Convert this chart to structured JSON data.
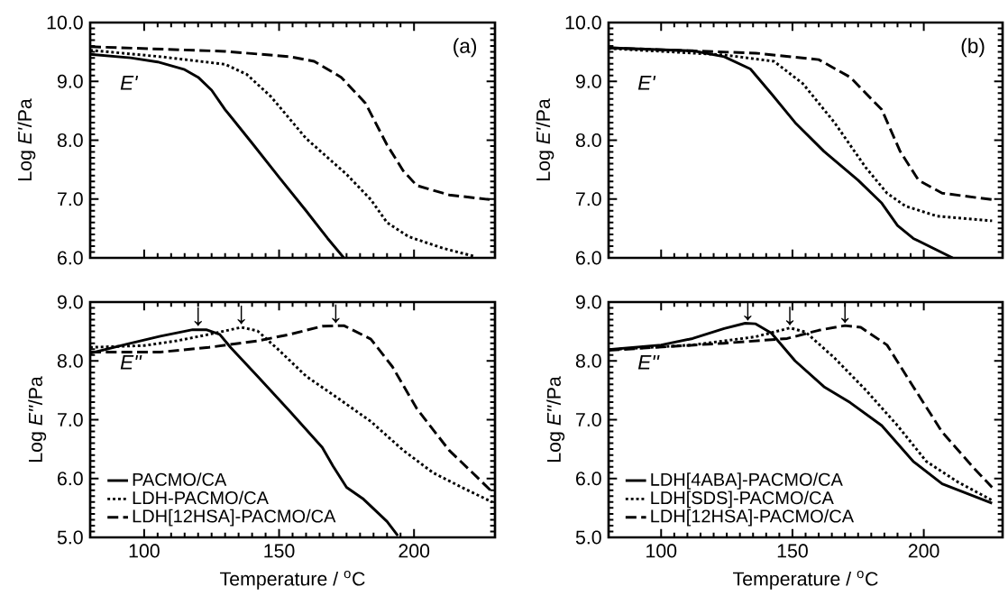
{
  "chart_data": [
    {
      "type": "line",
      "ylabel": "Log *E'*/Pa",
      "xlim": [
        80,
        230
      ],
      "xticks": [
        100,
        150,
        200
      ],
      "ylim": [
        6,
        10
      ],
      "yticks": [
        {
          "value": 6,
          "label": "6.0"
        },
        {
          "value": 7,
          "label": "7.0"
        },
        {
          "value": 8,
          "label": "8.0"
        },
        {
          "value": 9,
          "label": "9.0"
        },
        {
          "value": 10,
          "label": "10.0"
        }
      ],
      "tick_labels": "y",
      "annotations": [
        "(a)",
        "*E'*"
      ],
      "series": [
        {
          "color": "#000000",
          "line_style": "solid",
          "x": [
            80,
            95,
            105,
            115,
            120,
            125,
            130,
            140,
            150,
            160,
            168,
            174
          ],
          "values": [
            9.46,
            9.4,
            9.33,
            9.2,
            9.07,
            8.85,
            8.52,
            7.95,
            7.37,
            6.8,
            6.33,
            6.0
          ]
        },
        {
          "color": "#000000",
          "line_style": "dotted",
          "x": [
            80,
            106,
            130,
            138,
            147,
            160,
            175,
            184,
            190,
            198,
            211,
            222
          ],
          "values": [
            9.53,
            9.42,
            9.29,
            9.12,
            8.74,
            8.03,
            7.42,
            6.99,
            6.6,
            6.36,
            6.16,
            6.03
          ]
        },
        {
          "color": "#000000",
          "line_style": "dashed",
          "x": [
            80,
            130,
            154,
            163,
            173,
            182,
            190,
            196,
            201,
            213,
            228
          ],
          "values": [
            9.59,
            9.51,
            9.42,
            9.34,
            9.07,
            8.63,
            7.92,
            7.48,
            7.23,
            7.07,
            6.99
          ]
        }
      ]
    },
    {
      "type": "line",
      "ylabel": "Log *E'*/Pa",
      "xlim": [
        80,
        230
      ],
      "xticks": [
        100,
        150,
        200
      ],
      "ylim": [
        6,
        10
      ],
      "yticks": [
        {
          "value": 6,
          "label": "6.0"
        },
        {
          "value": 7,
          "label": "7.0"
        },
        {
          "value": 8,
          "label": "8.0"
        },
        {
          "value": 9,
          "label": "9.0"
        },
        {
          "value": 10,
          "label": "10.0"
        }
      ],
      "tick_labels": "y",
      "annotations": [
        "(b)",
        "*E'*"
      ],
      "series": [
        {
          "color": "#000000",
          "line_style": "solid",
          "x": [
            80,
            112,
            124,
            134,
            142,
            151,
            162,
            175,
            184,
            190,
            196,
            211
          ],
          "values": [
            9.57,
            9.52,
            9.42,
            9.21,
            8.79,
            8.3,
            7.81,
            7.32,
            6.93,
            6.55,
            6.33,
            6.0
          ]
        },
        {
          "color": "#000000",
          "line_style": "dotted",
          "x": [
            80,
            124,
            143,
            154,
            166,
            178,
            186,
            193,
            205,
            226
          ],
          "values": [
            9.56,
            9.45,
            9.34,
            8.96,
            8.3,
            7.53,
            7.1,
            6.88,
            6.71,
            6.63
          ]
        },
        {
          "color": "#000000",
          "line_style": "dashed",
          "x": [
            80,
            136,
            160,
            172,
            184,
            191,
            198,
            207,
            226
          ],
          "values": [
            9.57,
            9.48,
            9.37,
            9.07,
            8.52,
            7.81,
            7.32,
            7.1,
            6.99
          ]
        }
      ]
    },
    {
      "type": "line",
      "xlabel": "Temperature / $^{o}$C",
      "ylabel": "Log *E''*/Pa",
      "xlim": [
        80,
        230
      ],
      "xticks": [
        100,
        150,
        200
      ],
      "ylim": [
        5,
        9
      ],
      "yticks": [
        {
          "value": 5,
          "label": "5.0"
        },
        {
          "value": 6,
          "label": "6.0"
        },
        {
          "value": 7,
          "label": "7.0"
        },
        {
          "value": 8,
          "label": "8.0"
        },
        {
          "value": 9,
          "label": "9.0"
        }
      ],
      "legend": "bottom left",
      "annotations": [
        "*E''*",
        {
          "text": "↓",
          "x": 120,
          "y": 8.59
        },
        {
          "text": "↓",
          "x": 136,
          "y": 8.62
        },
        {
          "text": "↓",
          "x": 171,
          "y": 8.64
        }
      ],
      "series": [
        {
          "name": "PACMO/CA",
          "color": "#000000",
          "line_style": "solid",
          "x": [
            80,
            94,
            106,
            118,
            123,
            128,
            132,
            142,
            154,
            166,
            170,
            175,
            181,
            190,
            194
          ],
          "values": [
            8.13,
            8.29,
            8.42,
            8.53,
            8.53,
            8.45,
            8.23,
            7.74,
            7.14,
            6.53,
            6.21,
            5.85,
            5.66,
            5.27,
            5.03
          ]
        },
        {
          "name": "LDH-PACMO/CA",
          "color": "#000000",
          "line_style": "dotted",
          "x": [
            80,
            100,
            112,
            124,
            136,
            142,
            150,
            160,
            172,
            184,
            196,
            207,
            219,
            229
          ],
          "values": [
            8.23,
            8.26,
            8.34,
            8.45,
            8.57,
            8.51,
            8.18,
            7.74,
            7.36,
            6.97,
            6.48,
            6.1,
            5.82,
            5.6
          ]
        },
        {
          "name": "LDH[12HSA]-PACMO/CA",
          "color": "#000000",
          "line_style": "dashed",
          "x": [
            80,
            106,
            124,
            142,
            154,
            166,
            174,
            184,
            192,
            201,
            213,
            223,
            229
          ],
          "values": [
            8.15,
            8.15,
            8.23,
            8.34,
            8.45,
            8.59,
            8.6,
            8.37,
            7.9,
            7.19,
            6.48,
            6.04,
            5.77
          ]
        }
      ]
    },
    {
      "type": "line",
      "xlabel": "Temperature / $^{o}$C",
      "ylabel": "Log *E''*/Pa",
      "xlim": [
        80,
        230
      ],
      "xticks": [
        100,
        150,
        200
      ],
      "ylim": [
        5,
        9
      ],
      "yticks": [
        {
          "value": 5,
          "label": "5.0"
        },
        {
          "value": 6,
          "label": "6.0"
        },
        {
          "value": 7,
          "label": "7.0"
        },
        {
          "value": 8,
          "label": "8.0"
        },
        {
          "value": 9,
          "label": "9.0"
        }
      ],
      "legend": "bottom left",
      "annotations": [
        "*E''*",
        {
          "text": "↓",
          "x": 133,
          "y": 8.68
        },
        {
          "text": "↓",
          "x": 149,
          "y": 8.6
        },
        {
          "text": "↓",
          "x": 170,
          "y": 8.64
        }
      ],
      "series": [
        {
          "name": "LDH[4ABA]-PACMO/CA",
          "color": "#000000",
          "line_style": "solid",
          "x": [
            80,
            100,
            112,
            124,
            132,
            136,
            142,
            151,
            162,
            172,
            184,
            196,
            207,
            226
          ],
          "values": [
            8.19,
            8.27,
            8.38,
            8.55,
            8.64,
            8.63,
            8.47,
            8.0,
            7.56,
            7.29,
            6.9,
            6.29,
            5.91,
            5.58
          ]
        },
        {
          "name": "LDH[SDS]-PACMO/CA",
          "color": "#000000",
          "line_style": "dotted",
          "x": [
            80,
            112,
            136,
            149,
            155,
            166,
            178,
            190,
            201,
            213,
            226
          ],
          "values": [
            8.19,
            8.27,
            8.41,
            8.56,
            8.49,
            8.05,
            7.5,
            6.9,
            6.29,
            5.94,
            5.63
          ]
        },
        {
          "name": "LDH[12HSA]-PACMO/CA",
          "color": "#000000",
          "line_style": "dashed",
          "x": [
            80,
            124,
            148,
            160,
            170,
            176,
            186,
            196,
            207,
            219,
            226
          ],
          "values": [
            8.18,
            8.3,
            8.38,
            8.52,
            8.6,
            8.57,
            8.27,
            7.56,
            6.79,
            6.18,
            5.85
          ]
        }
      ]
    }
  ]
}
